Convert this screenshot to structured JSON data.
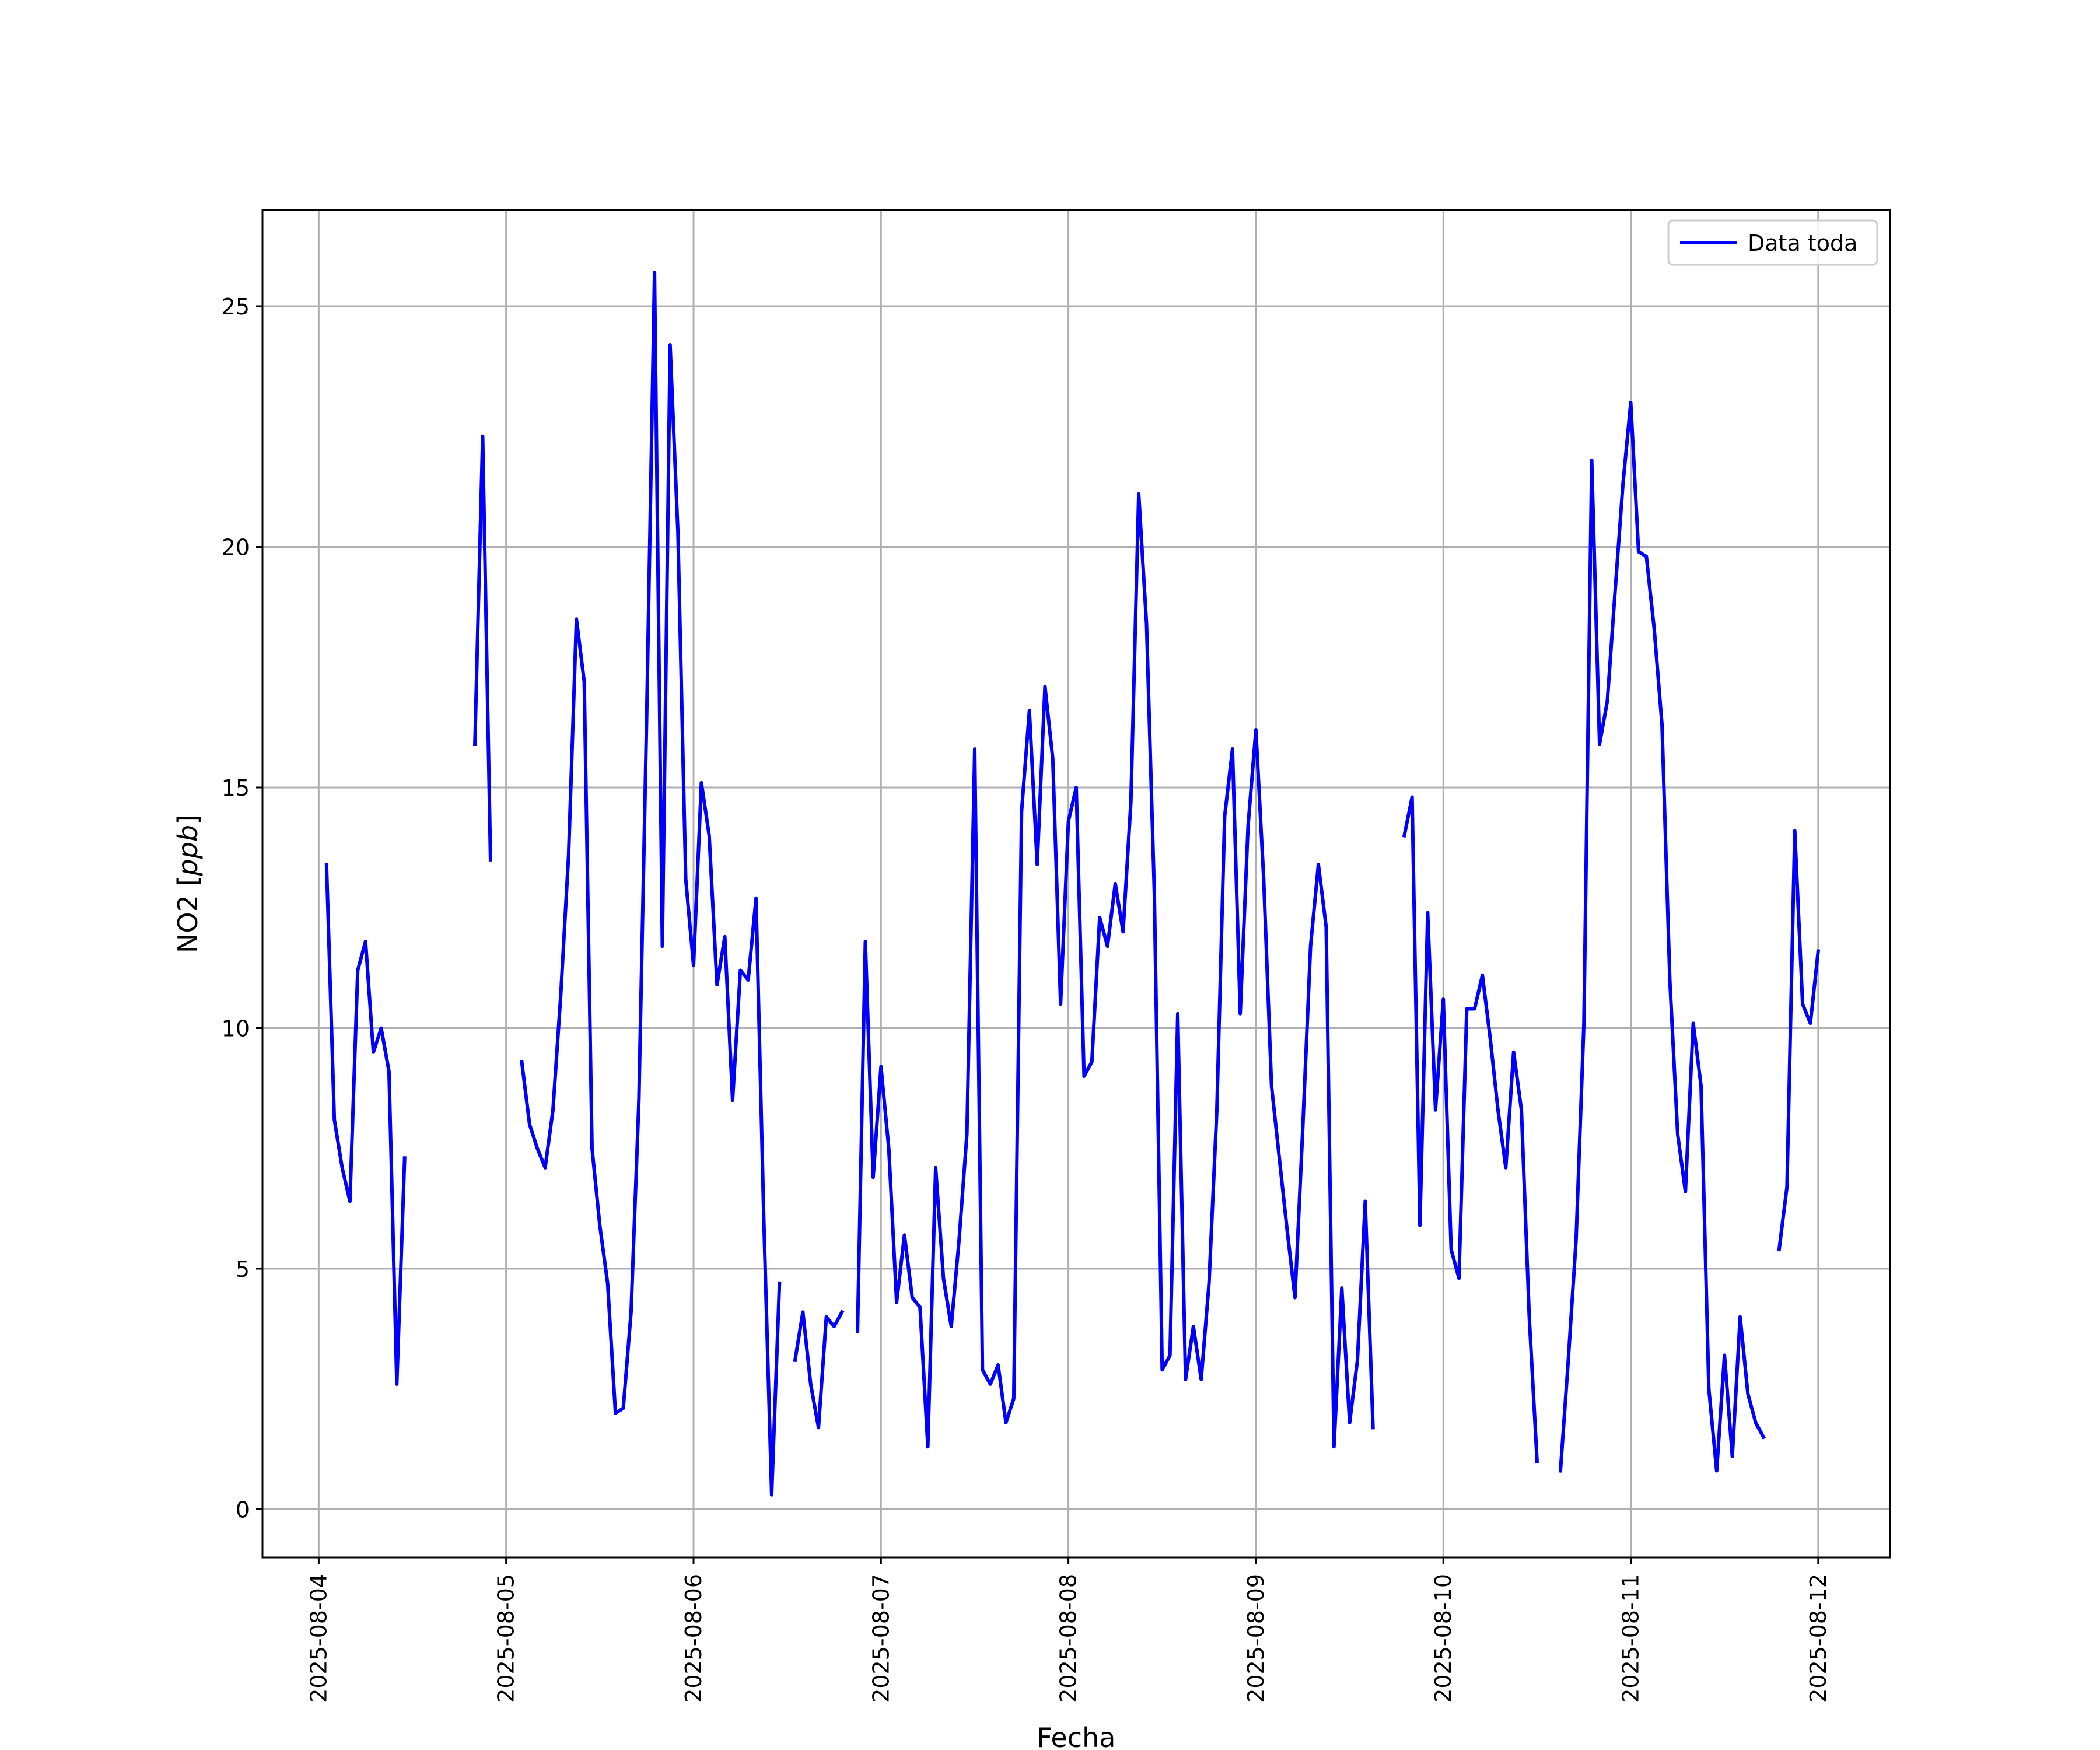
{
  "chart_data": {
    "type": "line",
    "xlabel": "Fecha",
    "ylabel": "NO2 [ppb]",
    "ylabel_parts": {
      "name": "NO2 [",
      "unit": "ppb",
      "close": "]"
    },
    "x_type": "datetime",
    "xlim": [
      "2025-08-03T16:48",
      "2025-08-12T09:12"
    ],
    "ylim": [
      -1,
      27
    ],
    "x_ticks": [
      "2025-08-04",
      "2025-08-05",
      "2025-08-06",
      "2025-08-07",
      "2025-08-08",
      "2025-08-09",
      "2025-08-10",
      "2025-08-11",
      "2025-08-12"
    ],
    "y_ticks": [
      0,
      5,
      10,
      15,
      20,
      25
    ],
    "grid": true,
    "legend": {
      "placement": "top-right"
    },
    "series": [
      {
        "name": "Data toda",
        "color": "#0000ff",
        "segments": [
          [
            [
              "2025-08-04T01:00",
              13.4
            ],
            [
              "2025-08-04T02:00",
              8.1
            ],
            [
              "2025-08-04T03:00",
              7.1
            ],
            [
              "2025-08-04T04:00",
              6.4
            ],
            [
              "2025-08-04T05:00",
              11.2
            ],
            [
              "2025-08-04T06:00",
              11.8
            ],
            [
              "2025-08-04T07:00",
              9.5
            ],
            [
              "2025-08-04T08:00",
              10.0
            ],
            [
              "2025-08-04T09:00",
              9.1
            ],
            [
              "2025-08-04T10:00",
              2.6
            ],
            [
              "2025-08-04T11:00",
              7.3
            ]
          ],
          [
            [
              "2025-08-04T20:00",
              15.9
            ],
            [
              "2025-08-04T21:00",
              22.3
            ],
            [
              "2025-08-04T22:00",
              13.5
            ]
          ],
          [
            [
              "2025-08-05T02:00",
              9.3
            ],
            [
              "2025-08-05T03:00",
              8.0
            ],
            [
              "2025-08-05T04:00",
              7.5
            ],
            [
              "2025-08-05T05:00",
              7.1
            ],
            [
              "2025-08-05T06:00",
              8.3
            ],
            [
              "2025-08-05T07:00",
              10.7
            ],
            [
              "2025-08-05T08:00",
              13.6
            ],
            [
              "2025-08-05T09:00",
              18.5
            ],
            [
              "2025-08-05T10:00",
              17.2
            ],
            [
              "2025-08-05T11:00",
              7.5
            ],
            [
              "2025-08-05T12:00",
              5.9
            ],
            [
              "2025-08-05T13:00",
              4.7
            ],
            [
              "2025-08-05T14:00",
              2.0
            ],
            [
              "2025-08-05T15:00",
              2.1
            ],
            [
              "2025-08-05T16:00",
              4.1
            ],
            [
              "2025-08-05T17:00",
              8.5
            ],
            [
              "2025-08-05T18:00",
              16.5
            ],
            [
              "2025-08-05T19:00",
              25.7
            ],
            [
              "2025-08-05T20:00",
              11.7
            ],
            [
              "2025-08-05T21:00",
              24.2
            ],
            [
              "2025-08-05T22:00",
              20.3
            ],
            [
              "2025-08-05T23:00",
              13.1
            ],
            [
              "2025-08-06T00:00",
              11.3
            ],
            [
              "2025-08-06T01:00",
              15.1
            ],
            [
              "2025-08-06T02:00",
              14.0
            ],
            [
              "2025-08-06T03:00",
              10.9
            ],
            [
              "2025-08-06T04:00",
              11.9
            ],
            [
              "2025-08-06T05:00",
              8.5
            ],
            [
              "2025-08-06T06:00",
              11.2
            ],
            [
              "2025-08-06T07:00",
              11.0
            ],
            [
              "2025-08-06T08:00",
              12.7
            ],
            [
              "2025-08-06T09:00",
              6.0
            ],
            [
              "2025-08-06T10:00",
              0.3
            ],
            [
              "2025-08-06T11:00",
              4.7
            ]
          ],
          [
            [
              "2025-08-06T13:00",
              3.1
            ],
            [
              "2025-08-06T14:00",
              4.1
            ],
            [
              "2025-08-06T15:00",
              2.6
            ],
            [
              "2025-08-06T16:00",
              1.7
            ],
            [
              "2025-08-06T17:00",
              4.0
            ],
            [
              "2025-08-06T18:00",
              3.8
            ],
            [
              "2025-08-06T19:00",
              4.1
            ]
          ],
          [
            [
              "2025-08-06T21:00",
              3.7
            ],
            [
              "2025-08-06T22:00",
              11.8
            ],
            [
              "2025-08-06T23:00",
              6.9
            ],
            [
              "2025-08-07T00:00",
              9.2
            ],
            [
              "2025-08-07T01:00",
              7.5
            ],
            [
              "2025-08-07T02:00",
              4.3
            ],
            [
              "2025-08-07T03:00",
              5.7
            ],
            [
              "2025-08-07T04:00",
              4.4
            ],
            [
              "2025-08-07T05:00",
              4.2
            ],
            [
              "2025-08-07T06:00",
              1.3
            ],
            [
              "2025-08-07T07:00",
              7.1
            ],
            [
              "2025-08-07T08:00",
              4.8
            ],
            [
              "2025-08-07T09:00",
              3.8
            ],
            [
              "2025-08-07T10:00",
              5.6
            ],
            [
              "2025-08-07T11:00",
              7.8
            ],
            [
              "2025-08-07T12:00",
              15.8
            ],
            [
              "2025-08-07T13:00",
              2.9
            ],
            [
              "2025-08-07T14:00",
              2.6
            ],
            [
              "2025-08-07T15:00",
              3.0
            ],
            [
              "2025-08-07T16:00",
              1.8
            ],
            [
              "2025-08-07T17:00",
              2.3
            ],
            [
              "2025-08-07T18:00",
              14.5
            ],
            [
              "2025-08-07T19:00",
              16.6
            ],
            [
              "2025-08-07T20:00",
              13.4
            ],
            [
              "2025-08-07T21:00",
              17.1
            ],
            [
              "2025-08-07T22:00",
              15.6
            ],
            [
              "2025-08-07T23:00",
              10.5
            ],
            [
              "2025-08-08T00:00",
              14.3
            ],
            [
              "2025-08-08T01:00",
              15.0
            ],
            [
              "2025-08-08T02:00",
              9.0
            ],
            [
              "2025-08-08T03:00",
              9.3
            ],
            [
              "2025-08-08T04:00",
              12.3
            ],
            [
              "2025-08-08T05:00",
              11.7
            ],
            [
              "2025-08-08T06:00",
              13.0
            ],
            [
              "2025-08-08T07:00",
              12.0
            ],
            [
              "2025-08-08T08:00",
              14.7
            ],
            [
              "2025-08-08T09:00",
              21.1
            ],
            [
              "2025-08-08T10:00",
              18.4
            ],
            [
              "2025-08-08T11:00",
              12.8
            ],
            [
              "2025-08-08T12:00",
              2.9
            ],
            [
              "2025-08-08T13:00",
              3.2
            ],
            [
              "2025-08-08T14:00",
              10.3
            ],
            [
              "2025-08-08T15:00",
              2.7
            ],
            [
              "2025-08-08T16:00",
              3.8
            ],
            [
              "2025-08-08T17:00",
              2.7
            ],
            [
              "2025-08-08T18:00",
              4.7
            ],
            [
              "2025-08-08T19:00",
              8.3
            ],
            [
              "2025-08-08T20:00",
              14.4
            ],
            [
              "2025-08-08T21:00",
              15.8
            ],
            [
              "2025-08-08T22:00",
              10.3
            ],
            [
              "2025-08-08T23:00",
              14.2
            ],
            [
              "2025-08-09T00:00",
              16.2
            ],
            [
              "2025-08-09T01:00",
              13.1
            ],
            [
              "2025-08-09T02:00",
              8.8
            ],
            [
              "2025-08-09T03:00",
              7.3
            ],
            [
              "2025-08-09T04:00",
              5.8
            ],
            [
              "2025-08-09T05:00",
              4.4
            ],
            [
              "2025-08-09T06:00",
              7.9
            ],
            [
              "2025-08-09T07:00",
              11.7
            ],
            [
              "2025-08-09T08:00",
              13.4
            ],
            [
              "2025-08-09T09:00",
              12.1
            ],
            [
              "2025-08-09T10:00",
              1.3
            ],
            [
              "2025-08-09T11:00",
              4.6
            ],
            [
              "2025-08-09T12:00",
              1.8
            ],
            [
              "2025-08-09T13:00",
              3.1
            ],
            [
              "2025-08-09T14:00",
              6.4
            ],
            [
              "2025-08-09T15:00",
              1.7
            ]
          ],
          [
            [
              "2025-08-09T19:00",
              14.0
            ],
            [
              "2025-08-09T20:00",
              14.8
            ],
            [
              "2025-08-09T21:00",
              5.9
            ],
            [
              "2025-08-09T22:00",
              12.4
            ],
            [
              "2025-08-09T23:00",
              8.3
            ],
            [
              "2025-08-10T00:00",
              10.6
            ],
            [
              "2025-08-10T01:00",
              5.4
            ],
            [
              "2025-08-10T02:00",
              4.8
            ],
            [
              "2025-08-10T03:00",
              10.4
            ],
            [
              "2025-08-10T04:00",
              10.4
            ],
            [
              "2025-08-10T05:00",
              11.1
            ],
            [
              "2025-08-10T06:00",
              9.8
            ],
            [
              "2025-08-10T07:00",
              8.3
            ],
            [
              "2025-08-10T08:00",
              7.1
            ],
            [
              "2025-08-10T09:00",
              9.5
            ],
            [
              "2025-08-10T10:00",
              8.3
            ],
            [
              "2025-08-10T11:00",
              4.0
            ],
            [
              "2025-08-10T12:00",
              1.0
            ]
          ],
          [
            [
              "2025-08-10T15:00",
              0.8
            ],
            [
              "2025-08-10T16:00",
              3.1
            ],
            [
              "2025-08-10T17:00",
              5.6
            ],
            [
              "2025-08-10T18:00",
              10.1
            ],
            [
              "2025-08-10T19:00",
              21.8
            ],
            [
              "2025-08-10T20:00",
              15.9
            ],
            [
              "2025-08-10T21:00",
              16.8
            ],
            [
              "2025-08-10T22:00",
              19.1
            ],
            [
              "2025-08-10T23:00",
              21.3
            ],
            [
              "2025-08-11T00:00",
              23.0
            ],
            [
              "2025-08-11T01:00",
              19.9
            ],
            [
              "2025-08-11T02:00",
              19.8
            ],
            [
              "2025-08-11T03:00",
              18.3
            ],
            [
              "2025-08-11T04:00",
              16.3
            ],
            [
              "2025-08-11T05:00",
              11.0
            ],
            [
              "2025-08-11T06:00",
              7.8
            ],
            [
              "2025-08-11T07:00",
              6.6
            ],
            [
              "2025-08-11T08:00",
              10.1
            ],
            [
              "2025-08-11T09:00",
              8.8
            ],
            [
              "2025-08-11T10:00",
              2.5
            ],
            [
              "2025-08-11T11:00",
              0.8
            ],
            [
              "2025-08-11T12:00",
              3.2
            ],
            [
              "2025-08-11T13:00",
              1.1
            ],
            [
              "2025-08-11T14:00",
              4.0
            ],
            [
              "2025-08-11T15:00",
              2.4
            ],
            [
              "2025-08-11T16:00",
              1.8
            ],
            [
              "2025-08-11T17:00",
              1.5
            ]
          ],
          [
            [
              "2025-08-11T19:00",
              5.4
            ],
            [
              "2025-08-11T20:00",
              6.7
            ],
            [
              "2025-08-11T21:00",
              14.1
            ],
            [
              "2025-08-11T22:00",
              10.5
            ],
            [
              "2025-08-11T23:00",
              10.1
            ],
            [
              "2025-08-12T00:00",
              11.6
            ]
          ]
        ]
      }
    ]
  }
}
